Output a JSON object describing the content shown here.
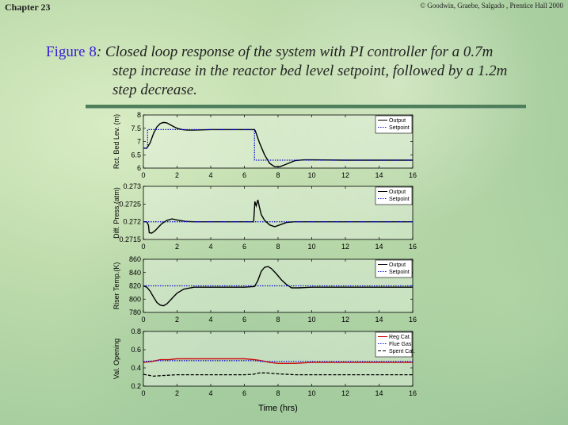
{
  "header": {
    "chapter": "Chapter 23",
    "copyright": "© Goodwin, Graebe, Salgado , Prentice Hall 2000"
  },
  "caption": {
    "figure_label": "Figure 8",
    "line1": ": Closed loop response of the system with PI controller for a 0.7m",
    "line2": "step increase in the reactor bed level setpoint, followed by a 1.2m",
    "line3": "step decrease."
  },
  "colors": {
    "output": "#000000",
    "setpoint": "#1010cc",
    "regcat": "#cc1010",
    "fluegas": "#1010cc",
    "spentcat": "#000000",
    "title_blue": "#3a1fd6"
  },
  "chart_data": [
    {
      "type": "line",
      "ylabel": "Rct. Bed Lev. (m)",
      "xlim": [
        0,
        16
      ],
      "ylim": [
        6,
        8
      ],
      "xticks": [
        "0",
        "2",
        "4",
        "6",
        "8",
        "10",
        "12",
        "14",
        "16"
      ],
      "yticks": [
        "6",
        "6.5",
        "7",
        "7.5",
        "8"
      ],
      "legend": [
        "Output",
        "Setpoint"
      ],
      "legend_position": "top-right",
      "series": [
        {
          "name": "Output",
          "style": "solid",
          "color": "#000000",
          "x": [
            0,
            0.2,
            0.4,
            0.6,
            0.8,
            1.0,
            1.2,
            1.4,
            1.6,
            1.8,
            2.0,
            2.3,
            2.6,
            3,
            4,
            5,
            6,
            6.6,
            6.65,
            6.9,
            7.2,
            7.5,
            7.8,
            8.1,
            8.5,
            9,
            9.5,
            10,
            12,
            14,
            16
          ],
          "y": [
            6.75,
            6.75,
            6.95,
            7.3,
            7.55,
            7.68,
            7.72,
            7.7,
            7.63,
            7.56,
            7.5,
            7.45,
            7.43,
            7.43,
            7.45,
            7.45,
            7.45,
            7.45,
            7.4,
            6.95,
            6.5,
            6.18,
            6.05,
            6.05,
            6.15,
            6.28,
            6.31,
            6.31,
            6.3,
            6.3,
            6.3
          ]
        },
        {
          "name": "Setpoint",
          "style": "dotted",
          "color": "#1010cc",
          "x": [
            0,
            0.25,
            0.25,
            6.6,
            6.6,
            16
          ],
          "y": [
            6.75,
            6.75,
            7.45,
            7.45,
            6.3,
            6.3
          ]
        }
      ]
    },
    {
      "type": "line",
      "ylabel": "Diff. Press.(atm)",
      "xlim": [
        0,
        16
      ],
      "ylim": [
        0.2715,
        0.273
      ],
      "xticks": [
        "0",
        "2",
        "4",
        "6",
        "8",
        "10",
        "12",
        "14",
        "16"
      ],
      "yticks": [
        "0.2715",
        "0.272",
        "0.2725",
        "0.273"
      ],
      "legend": [
        "Output",
        "Setpoint"
      ],
      "legend_position": "top-right",
      "series": [
        {
          "name": "Output",
          "style": "solid",
          "color": "#000000",
          "x": [
            0,
            0.2,
            0.3,
            0.35,
            0.5,
            0.7,
            0.9,
            1.1,
            1.4,
            1.7,
            2.0,
            2.5,
            3,
            4,
            6,
            6.55,
            6.6,
            6.62,
            6.7,
            6.8,
            6.9,
            7.0,
            7.2,
            7.5,
            7.8,
            8.1,
            8.5,
            9,
            10,
            12,
            16
          ],
          "y": [
            0.272,
            0.272,
            0.2719,
            0.27169,
            0.27168,
            0.27175,
            0.27185,
            0.27195,
            0.27204,
            0.27208,
            0.27205,
            0.27201,
            0.272,
            0.272,
            0.272,
            0.272,
            0.2724,
            0.27257,
            0.27245,
            0.27262,
            0.2724,
            0.2722,
            0.27204,
            0.27191,
            0.27186,
            0.27191,
            0.27198,
            0.272,
            0.272,
            0.272,
            0.272
          ]
        },
        {
          "name": "Setpoint",
          "style": "dotted",
          "color": "#1010cc",
          "x": [
            0,
            16
          ],
          "y": [
            0.272,
            0.272
          ]
        }
      ]
    },
    {
      "type": "line",
      "ylabel": "Riser Temp.(K)",
      "xlim": [
        0,
        16
      ],
      "ylim": [
        780,
        860
      ],
      "xticks": [
        "0",
        "2",
        "4",
        "6",
        "8",
        "10",
        "12",
        "14",
        "16"
      ],
      "yticks": [
        "780",
        "800",
        "820",
        "840",
        "860"
      ],
      "legend": [
        "Output",
        "Setpoint"
      ],
      "legend_position": "top-right",
      "series": [
        {
          "name": "Output",
          "style": "solid",
          "color": "#000000",
          "x": [
            0,
            0.2,
            0.4,
            0.6,
            0.8,
            1.0,
            1.2,
            1.4,
            1.7,
            2.0,
            2.4,
            3,
            4,
            5,
            6,
            6.6,
            6.8,
            7.0,
            7.2,
            7.4,
            7.6,
            7.9,
            8.2,
            8.5,
            8.8,
            9.2,
            10,
            12,
            16
          ],
          "y": [
            820,
            818,
            812,
            803,
            795,
            791,
            790,
            793,
            801,
            809,
            815,
            818,
            818,
            818,
            818,
            819,
            828,
            842,
            848,
            849,
            846,
            838,
            829,
            822,
            817,
            817,
            818,
            818,
            818
          ]
        },
        {
          "name": "Setpoint",
          "style": "dotted",
          "color": "#1010cc",
          "x": [
            0,
            16
          ],
          "y": [
            820,
            820
          ]
        }
      ]
    },
    {
      "type": "line",
      "ylabel": "Val. Opening",
      "xlabel": "Time (hrs)",
      "xlim": [
        0,
        16
      ],
      "ylim": [
        0.2,
        0.8
      ],
      "xticks": [
        "0",
        "2",
        "4",
        "6",
        "8",
        "10",
        "12",
        "14",
        "16"
      ],
      "yticks": [
        "0.2",
        "0.4",
        "0.6",
        "0.8"
      ],
      "legend": [
        "Reg Cat.",
        "Flue Gas",
        "Spent Cat."
      ],
      "legend_position": "top-right",
      "series": [
        {
          "name": "Reg Cat.",
          "style": "solid",
          "color": "#cc1010",
          "x": [
            0,
            0.5,
            1,
            1.5,
            2,
            4,
            6,
            6.6,
            7,
            7.5,
            8,
            8.5,
            9,
            10,
            12,
            16
          ],
          "y": [
            0.46,
            0.47,
            0.49,
            0.49,
            0.5,
            0.5,
            0.5,
            0.49,
            0.48,
            0.46,
            0.45,
            0.45,
            0.45,
            0.46,
            0.46,
            0.46
          ]
        },
        {
          "name": "Flue Gas",
          "style": "dotted",
          "color": "#1010cc",
          "x": [
            0,
            1,
            2,
            6,
            6.6,
            7,
            8,
            10,
            16
          ],
          "y": [
            0.47,
            0.48,
            0.48,
            0.48,
            0.48,
            0.47,
            0.47,
            0.47,
            0.47
          ]
        },
        {
          "name": "Spent Cat.",
          "style": "dashed",
          "color": "#000000",
          "x": [
            0,
            0.3,
            0.6,
            1.0,
            1.5,
            2,
            3,
            6,
            6.5,
            6.9,
            7.3,
            8,
            9,
            10,
            12,
            16
          ],
          "y": [
            0.33,
            0.32,
            0.31,
            0.315,
            0.32,
            0.325,
            0.325,
            0.325,
            0.33,
            0.345,
            0.345,
            0.335,
            0.325,
            0.325,
            0.325,
            0.325
          ]
        }
      ]
    }
  ]
}
